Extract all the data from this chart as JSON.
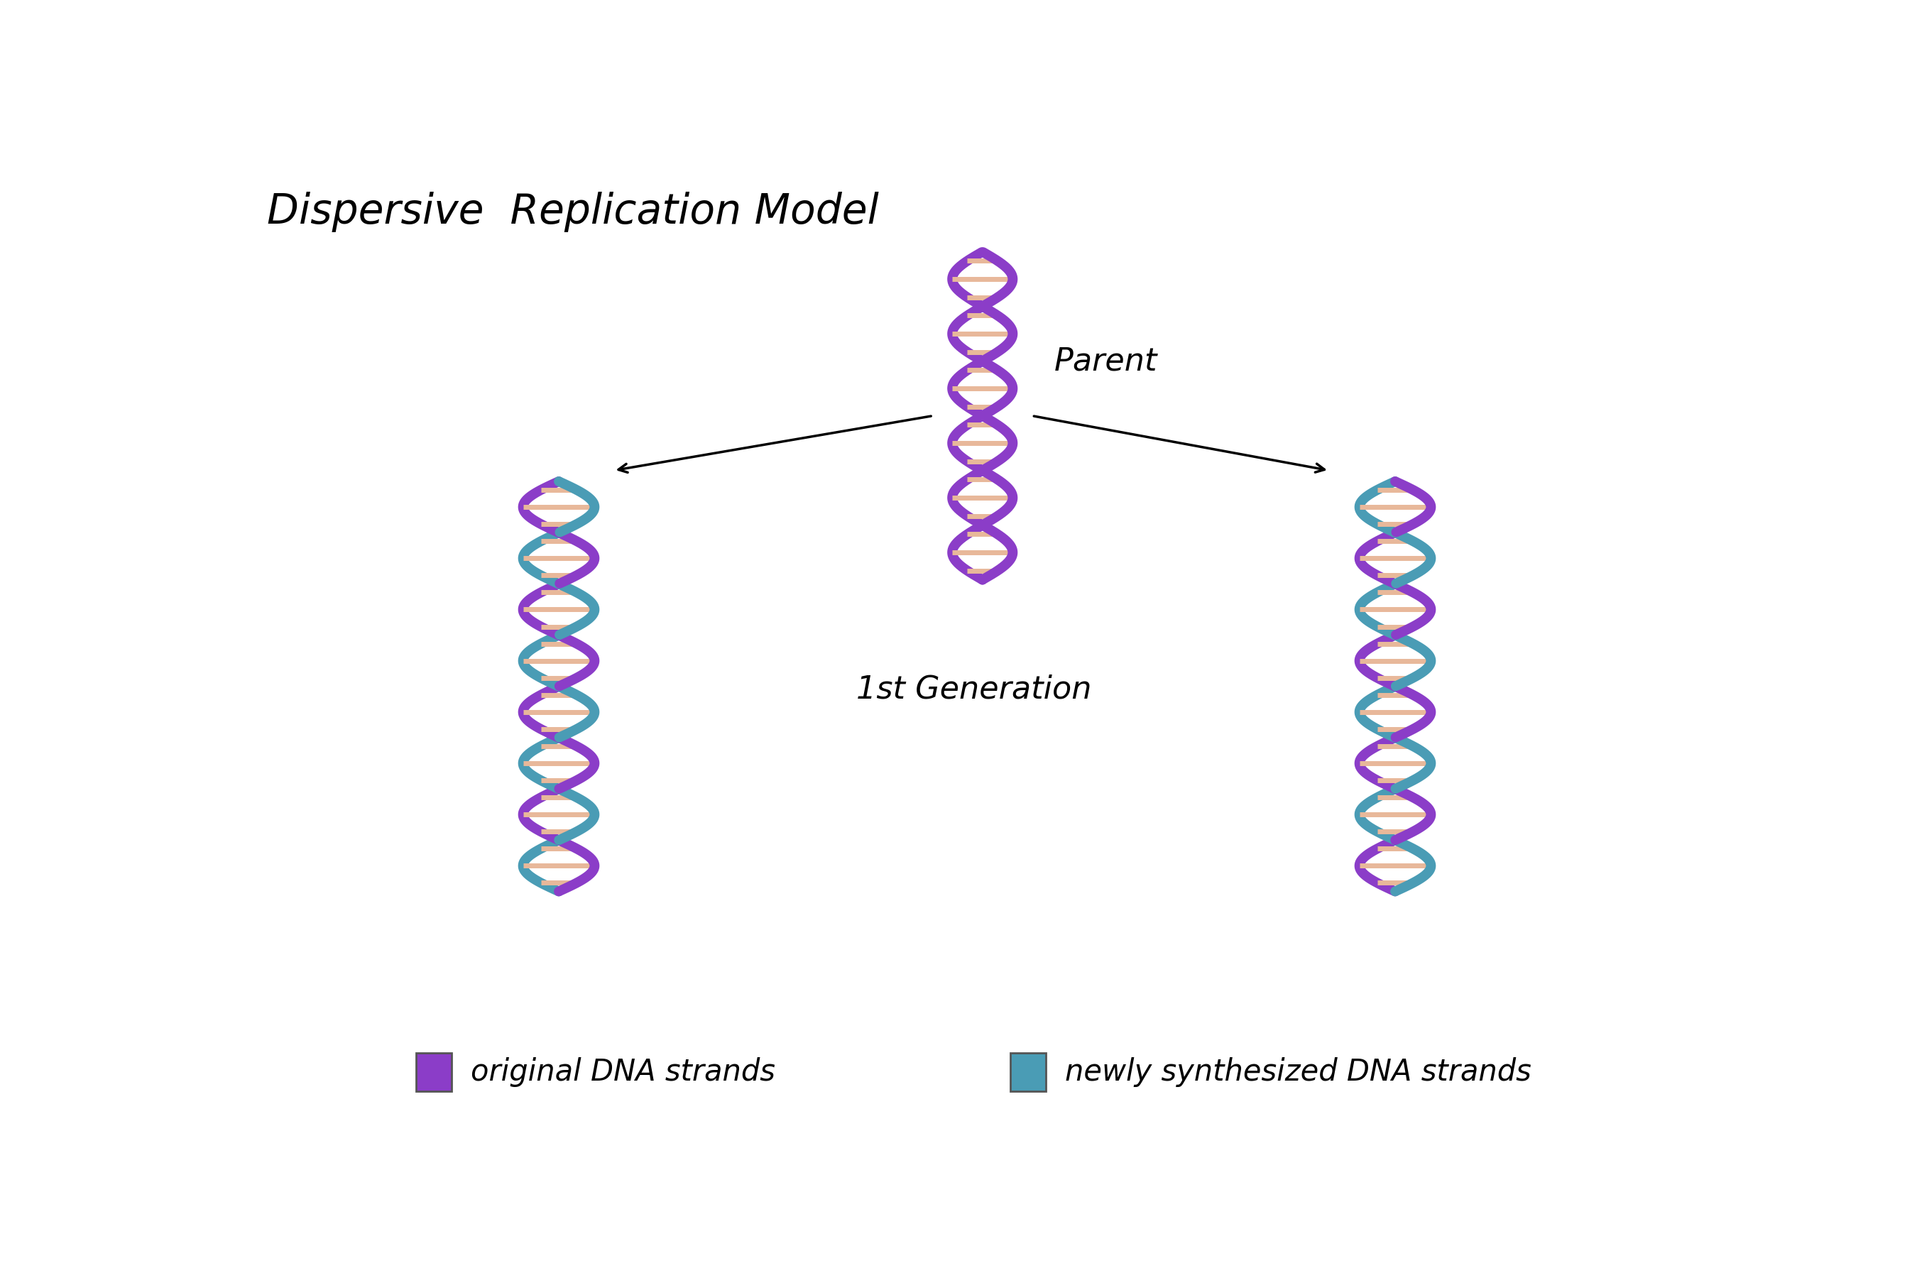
{
  "title": "Dispersive  Replication Model",
  "title_fontsize": 42,
  "background_color": "#ffffff",
  "purple_color": "#8B3DC8",
  "blue_color": "#4A9CB5",
  "rung_color": "#E8B89A",
  "parent_label": "Parent",
  "gen1_label": "1st Generation",
  "legend_original": "original DNA strands",
  "legend_new": "newly synthesized DNA strands"
}
